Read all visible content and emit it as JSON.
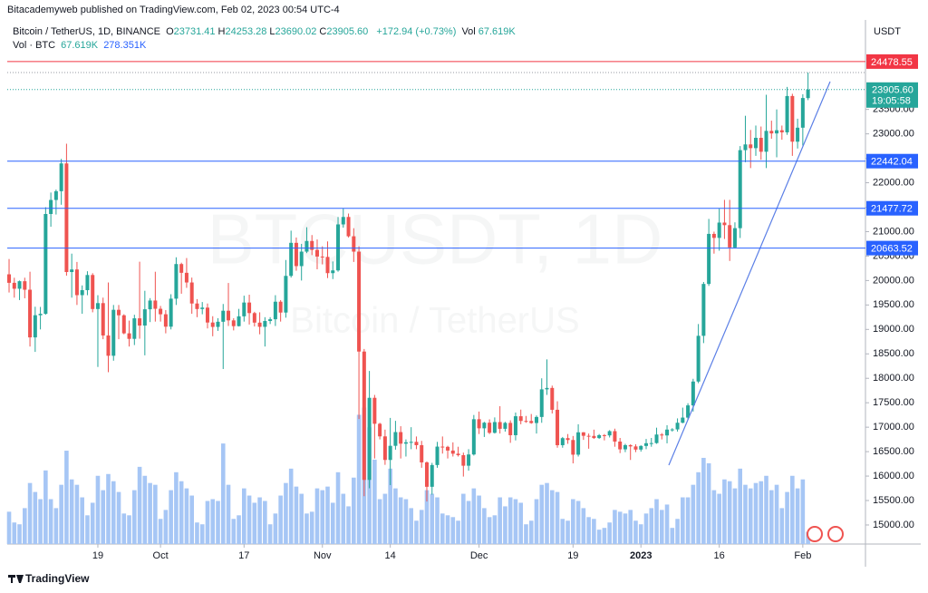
{
  "header": {
    "publisher": "Bitacademyweb published on TradingView.com, Feb 02, 2023 00:54 UTC-4"
  },
  "chart_data": {
    "type": "candlestick",
    "title": "Bitcoin / TetherUS, 1D, BINANCE",
    "ohlc_legend": [
      {
        "key": "O",
        "value": "23731.41"
      },
      {
        "key": "H",
        "value": "24253.28"
      },
      {
        "key": "L",
        "value": "23690.02"
      },
      {
        "key": "C",
        "value": "23905.60"
      }
    ],
    "change": "+172.94 (+0.73%)",
    "volume_key": "Vol",
    "volume_value": "67.619K",
    "volume_legend": {
      "name": "Vol · BTC",
      "value": "67.619K",
      "ma": "278.351K"
    },
    "watermark": "BTCUSDT, 1D",
    "watermark_subtitle": "Bitcoin / TetherUS",
    "currency": "USDT",
    "up_color": "#26a69a",
    "down_color": "#ef5350",
    "volume_color": "#a6c6f5",
    "xlim": [
      -0.35,
      164
    ],
    "xticks": [
      {
        "value": 17,
        "label": "19"
      },
      {
        "value": 29,
        "label": "Oct"
      },
      {
        "value": 45,
        "label": "17"
      },
      {
        "value": 60,
        "label": "Nov"
      },
      {
        "value": 73,
        "label": "14"
      },
      {
        "value": 90,
        "label": "Dec"
      },
      {
        "value": 108,
        "label": "19"
      },
      {
        "value": 121,
        "label": "2023"
      },
      {
        "value": 136,
        "label": "16"
      },
      {
        "value": 152,
        "label": "Feb"
      }
    ],
    "ylim": [
      14610,
      25330
    ],
    "yticks": [
      {
        "value": 15000,
        "label": "15000.00"
      },
      {
        "value": 15500,
        "label": "15500.00"
      },
      {
        "value": 16000,
        "label": "16000.00"
      },
      {
        "value": 16500,
        "label": "16500.00"
      },
      {
        "value": 17000,
        "label": "17000.00"
      },
      {
        "value": 17500,
        "label": "17500.00"
      },
      {
        "value": 18000,
        "label": "18000.00"
      },
      {
        "value": 18500,
        "label": "18500.00"
      },
      {
        "value": 19000,
        "label": "19000.00"
      },
      {
        "value": 19500,
        "label": "19500.00"
      },
      {
        "value": 20000,
        "label": "20000.00"
      },
      {
        "value": 20500,
        "label": "20500.00"
      },
      {
        "value": 21000,
        "label": "21000.00"
      },
      {
        "value": 21500,
        "label": "21500.00"
      },
      {
        "value": 22000,
        "label": "22000.00"
      },
      {
        "value": 22500,
        "label": "22500.00"
      },
      {
        "value": 23000,
        "label": "23000.00"
      },
      {
        "value": 23500,
        "label": "23500.00"
      }
    ],
    "open": [
      20127,
      19953,
      19832,
      19986,
      19812,
      18837,
      19290,
      19319,
      21361,
      21648,
      21827,
      22395,
      20174,
      20226,
      19701,
      19803,
      20113,
      19417,
      19538,
      18876,
      18461,
      19401,
      19289,
      18920,
      18807,
      19227,
      19079,
      19412,
      19591,
      19422,
      19310,
      19056,
      19629,
      20337,
      20158,
      19960,
      19530,
      19417,
      19446,
      19141,
      19051,
      19157,
      19382,
      19185,
      19067,
      19268,
      19550,
      19334,
      19139,
      19053,
      19172,
      19208,
      19567,
      19345,
      20095,
      20771,
      20295,
      20591,
      20809,
      20627,
      20490,
      20483,
      20151,
      20207,
      21148,
      21300,
      20905,
      20591,
      18547,
      15922,
      17601,
      17070,
      16812,
      16330,
      16619,
      16900,
      16663,
      16692,
      16700,
      16632,
      16280,
      15781,
      16226,
      16603,
      16598,
      16522,
      16458,
      16428,
      16212,
      16442,
      17163,
      16977,
      17092,
      16885,
      17105,
      16967,
      17088,
      16836,
      17224,
      17128,
      17127,
      17085,
      17209,
      17774,
      17803,
      17356,
      16632,
      16776,
      16738,
      16438,
      16895,
      16824,
      16821,
      16778,
      16837,
      16832,
      16919,
      16706,
      16547,
      16633,
      16607,
      16542,
      16616,
      16672,
      16675,
      16850,
      16831,
      16951,
      16955,
      17091,
      17196,
      17446,
      17934,
      18869,
      19930,
      20954,
      20872,
      21185,
      21133,
      20677,
      21071,
      22667,
      22784,
      22708,
      22919,
      22634,
      23061,
      23009,
      23074,
      23031,
      23774,
      22840,
      23126,
      23731.41
    ],
    "high": [
      20440,
      20057,
      20000,
      20058,
      20180,
      19464,
      19460,
      21500,
      21800,
      21860,
      22488,
      22799,
      20550,
      20380,
      19900,
      20190,
      20150,
      19700,
      19650,
      19960,
      19500,
      19500,
      19310,
      19180,
      19300,
      20385,
      19790,
      19640,
      20180,
      19480,
      19395,
      19720,
      20475,
      20365,
      20460,
      20060,
      19620,
      19560,
      19530,
      19270,
      19230,
      19520,
      19950,
      19230,
      19420,
      19690,
      19710,
      19360,
      19350,
      19250,
      19250,
      19700,
      19600,
      20420,
      21020,
      20880,
      20750,
      21090,
      20930,
      20840,
      20700,
      20800,
      20390,
      21300,
      21480,
      21370,
      21070,
      20700,
      18600,
      18150,
      17660,
      17090,
      16950,
      17190,
      17130,
      17020,
      16750,
      17000,
      16810,
      16720,
      16300,
      16270,
      16700,
      16810,
      16620,
      16690,
      16600,
      16480,
      16550,
      17250,
      17320,
      17110,
      17160,
      17200,
      17430,
      17110,
      17140,
      17300,
      17360,
      17230,
      17270,
      17240,
      18000,
      18387,
      17850,
      17530,
      16800,
      16860,
      16820,
      17060,
      16900,
      16870,
      16950,
      16860,
      16860,
      16940,
      16970,
      16780,
      16660,
      16650,
      16650,
      16630,
      16760,
      16780,
      16990,
      16880,
      17040,
      16980,
      17180,
      17400,
      17490,
      17990,
      19110,
      19970,
      21260,
      21000,
      21470,
      21650,
      21650,
      21190,
      22750,
      23370,
      23080,
      23170,
      23150,
      23800,
      23270,
      23500,
      23170,
      23960,
      23820,
      23310,
      23810,
      24253.28
    ],
    "low": [
      19755,
      19650,
      19600,
      19637,
      18650,
      18540,
      19000,
      19300,
      21100,
      21350,
      21550,
      20100,
      19650,
      19500,
      19320,
      19700,
      19350,
      18232,
      18800,
      18125,
      18360,
      18800,
      18900,
      18650,
      18680,
      18810,
      18470,
      19150,
      19160,
      19160,
      18920,
      19000,
      19500,
      19730,
      19850,
      19320,
      19250,
      19310,
      19020,
      18860,
      18970,
      18190,
      19070,
      18980,
      19060,
      19160,
      19100,
      19060,
      18900,
      18650,
      19110,
      19070,
      19160,
      19240,
      20060,
      20200,
      20000,
      20560,
      20520,
      20230,
      20330,
      20050,
      20030,
      20180,
      21080,
      20880,
      20380,
      17166,
      15588,
      15750,
      16360,
      16750,
      16230,
      15815,
      16540,
      16360,
      16400,
      16550,
      16550,
      16170,
      15480,
      15620,
      16170,
      16460,
      16360,
      16400,
      16400,
      15990,
      16110,
      16420,
      16860,
      16800,
      16860,
      16870,
      16870,
      16910,
      16680,
      16730,
      17060,
      17090,
      17070,
      16870,
      17090,
      17660,
      17280,
      16580,
      16580,
      16660,
      16260,
      16400,
      16740,
      16560,
      16760,
      16760,
      16730,
      16790,
      16600,
      16470,
      16490,
      16330,
      16490,
      16500,
      16550,
      16600,
      16660,
      16750,
      16670,
      16910,
      16910,
      17080,
      17150,
      17320,
      17900,
      18720,
      19890,
      20550,
      20610,
      20850,
      20400,
      20660,
      20870,
      22420,
      22300,
      22550,
      22470,
      22300,
      22900,
      22520,
      22880,
      22980,
      22550,
      22700,
      22760,
      23690.02
    ],
    "close": [
      19953,
      19832,
      19986,
      19812,
      18837,
      19290,
      19319,
      21361,
      21648,
      21827,
      22395,
      20174,
      20226,
      19701,
      19803,
      20113,
      19417,
      19538,
      18876,
      18461,
      19401,
      19289,
      18920,
      18807,
      19227,
      19079,
      19412,
      19591,
      19422,
      19310,
      19056,
      19629,
      20337,
      20158,
      19960,
      19530,
      19417,
      19446,
      19141,
      19051,
      19157,
      19382,
      19185,
      19067,
      19268,
      19550,
      19334,
      19139,
      19053,
      19172,
      19208,
      19567,
      19345,
      20095,
      20771,
      20295,
      20591,
      20809,
      20627,
      20490,
      20483,
      20151,
      20207,
      21148,
      21300,
      20905,
      20591,
      18547,
      15922,
      17601,
      17070,
      16812,
      16330,
      16619,
      16900,
      16663,
      16692,
      16700,
      16632,
      16280,
      15781,
      16226,
      16603,
      16598,
      16522,
      16458,
      16428,
      16212,
      16442,
      17163,
      16977,
      17092,
      16885,
      17105,
      16967,
      17088,
      16836,
      17224,
      17128,
      17127,
      17085,
      17209,
      17774,
      17803,
      17356,
      16632,
      16776,
      16738,
      16438,
      16895,
      16824,
      16821,
      16778,
      16837,
      16832,
      16919,
      16706,
      16547,
      16633,
      16607,
      16542,
      16616,
      16672,
      16675,
      16850,
      16831,
      16951,
      16955,
      17091,
      17196,
      17446,
      17934,
      18869,
      19930,
      20954,
      20872,
      21185,
      21133,
      20677,
      21071,
      22667,
      22784,
      22708,
      22919,
      22634,
      23061,
      23009,
      23074,
      23031,
      23774,
      22840,
      23126,
      23733,
      23905.6
    ],
    "volume": [
      180000,
      120000,
      110000,
      200000,
      340000,
      290000,
      250000,
      410000,
      250000,
      200000,
      330000,
      520000,
      360000,
      330000,
      260000,
      160000,
      230000,
      380000,
      300000,
      390000,
      350000,
      290000,
      170000,
      160000,
      300000,
      430000,
      380000,
      340000,
      330000,
      140000,
      190000,
      300000,
      400000,
      350000,
      310000,
      270000,
      120000,
      110000,
      240000,
      250000,
      240000,
      560000,
      330000,
      140000,
      160000,
      310000,
      270000,
      230000,
      260000,
      240000,
      110000,
      170000,
      270000,
      340000,
      420000,
      320000,
      280000,
      170000,
      180000,
      310000,
      300000,
      320000,
      230000,
      400000,
      280000,
      210000,
      370000,
      720000,
      760000,
      650000,
      470000,
      250000,
      280000,
      420000,
      310000,
      260000,
      250000,
      200000,
      130000,
      190000,
      300000,
      280000,
      260000,
      170000,
      160000,
      150000,
      130000,
      280000,
      240000,
      310000,
      270000,
      200000,
      150000,
      160000,
      260000,
      210000,
      260000,
      250000,
      230000,
      110000,
      130000,
      250000,
      330000,
      340000,
      300000,
      290000,
      140000,
      130000,
      250000,
      240000,
      200000,
      150000,
      140000,
      80000,
      90000,
      120000,
      190000,
      180000,
      170000,
      190000,
      130000,
      110000,
      170000,
      200000,
      250000,
      190000,
      220000,
      90000,
      140000,
      260000,
      260000,
      330000,
      400000,
      480000,
      450000,
      300000,
      280000,
      360000,
      350000,
      310000,
      420000,
      330000,
      310000,
      340000,
      350000,
      380000,
      300000,
      330000,
      200000,
      290000,
      380000,
      310000,
      360000,
      67619
    ],
    "hlines": [
      {
        "value": 24478.55,
        "color": "#f23645"
      },
      {
        "value": 22442.04,
        "color": "#2962ff"
      },
      {
        "value": 21477.72,
        "color": "#2962ff"
      },
      {
        "value": 20663.52,
        "color": "#2962ff"
      }
    ],
    "last_price": {
      "value": 23905.6,
      "label": "23905.60",
      "countdown": "19:05:58"
    }
  },
  "footer": {
    "brand": "TradingView"
  }
}
